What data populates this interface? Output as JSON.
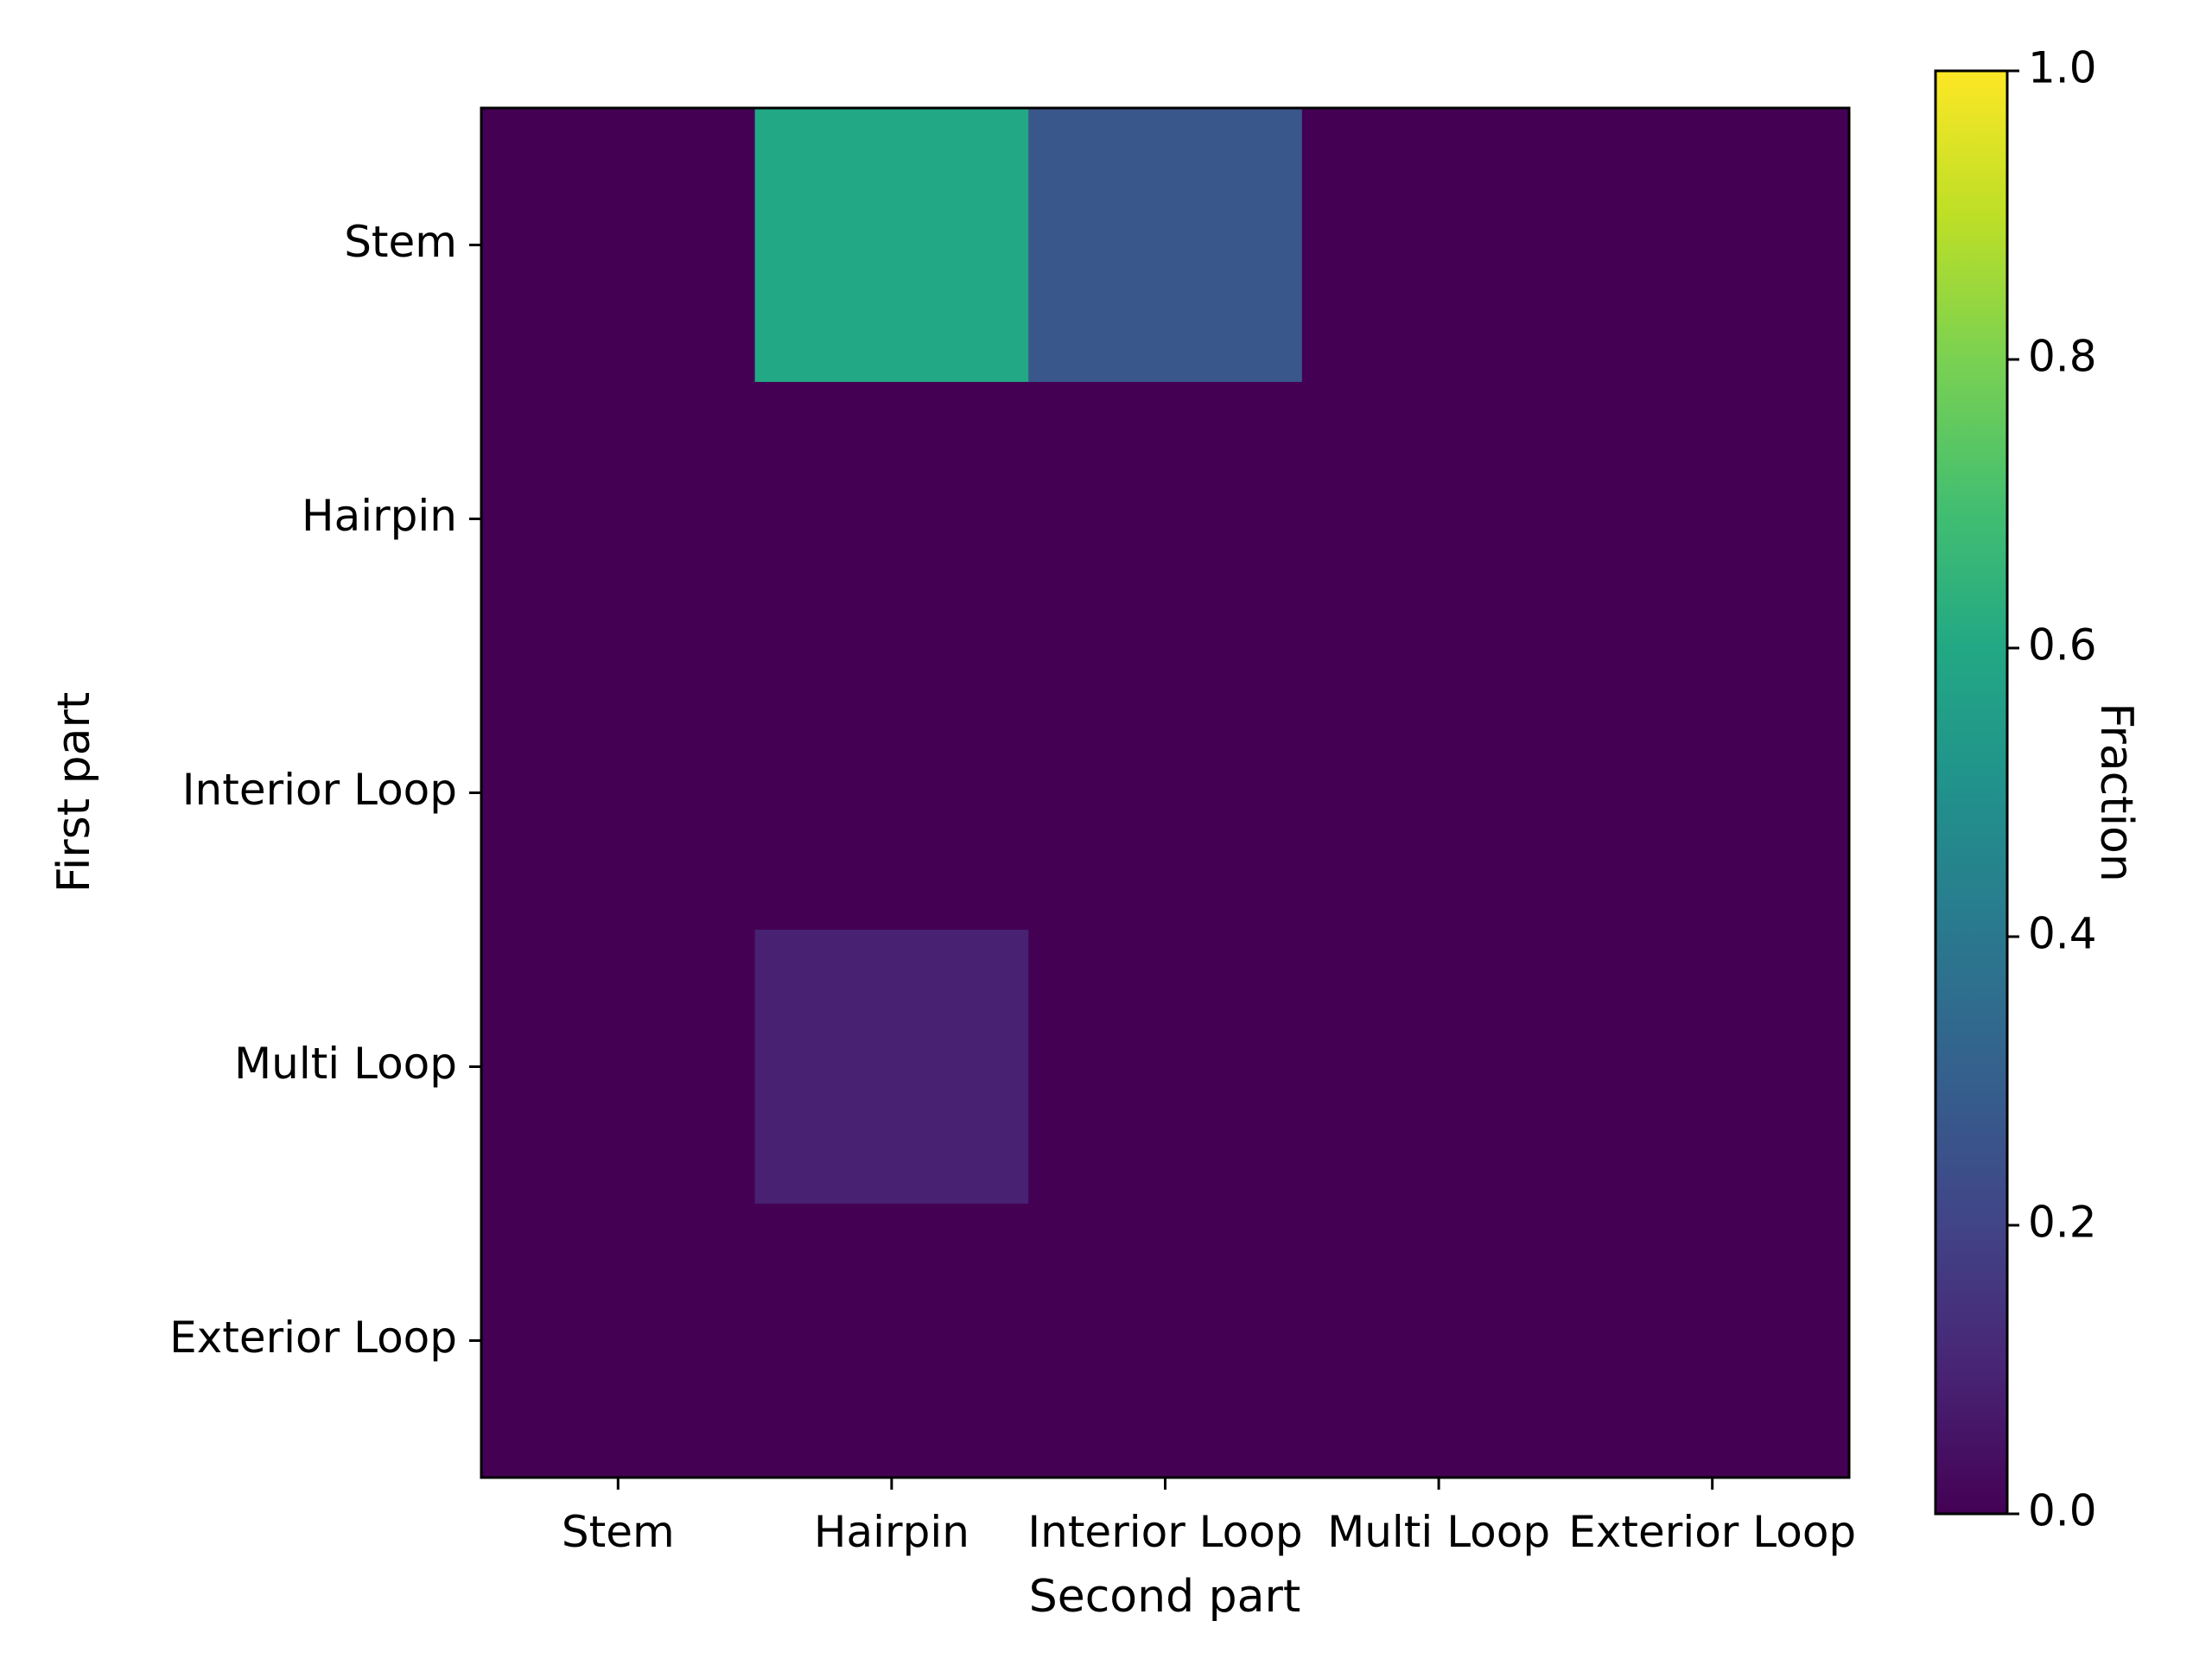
{
  "chart_data": {
    "type": "heatmap",
    "x_categories": [
      "Stem",
      "Hairpin",
      "Interior Loop",
      "Multi Loop",
      "Exterior Loop"
    ],
    "y_categories": [
      "Stem",
      "Hairpin",
      "Interior Loop",
      "Multi Loop",
      "Exterior Loop"
    ],
    "values": [
      [
        0.0,
        0.6,
        0.27,
        0.0,
        0.0
      ],
      [
        0.0,
        0.0,
        0.0,
        0.0,
        0.0
      ],
      [
        0.0,
        0.0,
        0.0,
        0.0,
        0.0
      ],
      [
        0.0,
        0.09,
        0.0,
        0.0,
        0.0
      ],
      [
        0.0,
        0.0,
        0.0,
        0.0,
        0.0
      ]
    ],
    "xlabel": "Second part",
    "ylabel": "First part",
    "colorbar": {
      "label": "Fraction",
      "range": [
        0.0,
        1.0
      ],
      "ticks": [
        "0.0",
        "0.2",
        "0.4",
        "0.6",
        "0.8",
        "1.0"
      ],
      "colormap": "viridis"
    }
  }
}
